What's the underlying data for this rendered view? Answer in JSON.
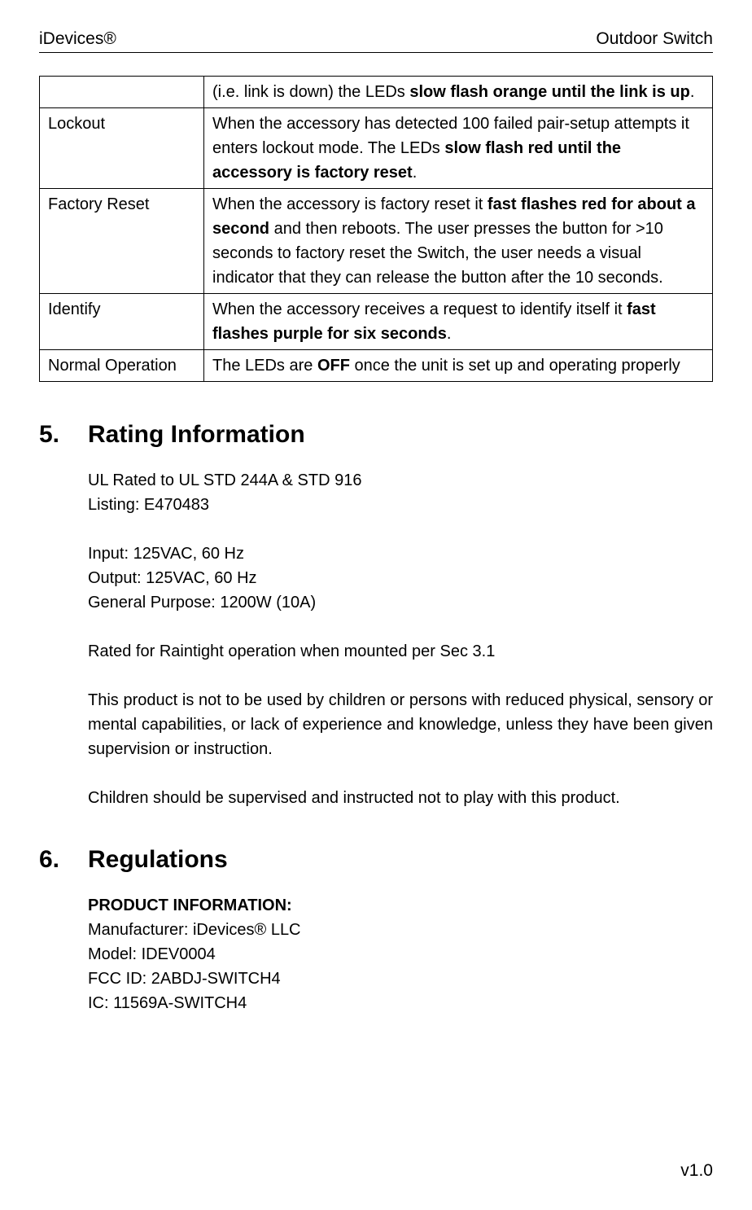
{
  "header": {
    "left": "iDevices®",
    "right": "Outdoor Switch"
  },
  "footer": {
    "version": "v1.0"
  },
  "table": {
    "rows": [
      {
        "label": "",
        "segments": [
          {
            "text": "(i.e. link is down) the LEDs ",
            "bold": false
          },
          {
            "text": "slow flash orange until the link is up",
            "bold": true
          },
          {
            "text": ".",
            "bold": false
          }
        ]
      },
      {
        "label": "Lockout",
        "segments": [
          {
            "text": "When the accessory has detected 100 failed pair-setup attempts it enters lockout mode.  The LEDs ",
            "bold": false
          },
          {
            "text": "slow flash red until the accessory is factory reset",
            "bold": true
          },
          {
            "text": ".",
            "bold": false
          }
        ]
      },
      {
        "label": "Factory Reset",
        "segments": [
          {
            "text": "When the accessory is factory reset it ",
            "bold": false
          },
          {
            "text": "fast flashes red for about a second",
            "bold": true
          },
          {
            "text": " and then reboots.  The user presses the button for >10 seconds to factory reset the Switch, the user needs a visual indicator that they can release the button after the 10 seconds.",
            "bold": false
          }
        ]
      },
      {
        "label": "Identify",
        "segments": [
          {
            "text": "When the accessory receives a request to identify itself it ",
            "bold": false
          },
          {
            "text": "fast flashes purple for six seconds",
            "bold": true
          },
          {
            "text": ".",
            "bold": false
          }
        ]
      },
      {
        "label": "Normal Operation",
        "segments": [
          {
            "text": "The LEDs are ",
            "bold": false
          },
          {
            "text": "OFF",
            "bold": true
          },
          {
            "text": " once the unit is set up and operating properly",
            "bold": false
          }
        ]
      }
    ]
  },
  "section5": {
    "num": "5.",
    "title": "Rating Information",
    "lines1": [
      "UL Rated to UL STD 244A & STD 916",
      "Listing: E470483"
    ],
    "lines2": [
      "Input: 125VAC, 60 Hz",
      "Output: 125VAC, 60 Hz",
      "General Purpose: 1200W (10A)"
    ],
    "line3": "Rated for Raintight operation when mounted per Sec 3.1",
    "para4": "This product is not to be used by children or persons with reduced physical, sensory or mental capabilities, or lack of experience and knowledge, unless they have been given supervision or instruction.",
    "para5": "Children should be supervised and instructed not to play with this product."
  },
  "section6": {
    "num": "6.",
    "title": "Regulations",
    "subhead": "PRODUCT INFORMATION:",
    "lines": [
      "Manufacturer: iDevices® LLC",
      "Model: IDEV0004",
      "FCC ID: 2ABDJ-SWITCH4",
      " IC: 11569A-SWITCH4"
    ]
  }
}
